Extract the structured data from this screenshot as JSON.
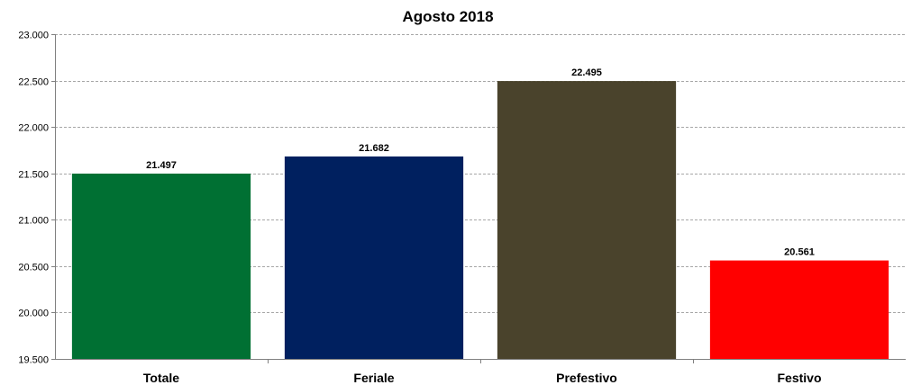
{
  "chart_data": {
    "type": "bar",
    "title": "Agosto 2018",
    "categories": [
      "Totale",
      "Feriale",
      "Prefestivo",
      "Festivo"
    ],
    "values": [
      21497,
      21682,
      22495,
      20561
    ],
    "value_labels": [
      "21.497",
      "21.682",
      "22.495",
      "20.561"
    ],
    "colors": [
      "#007033",
      "#00205f",
      "#4a432c",
      "#ff0000"
    ],
    "ylim": [
      19500,
      23000
    ],
    "yticks": [
      19500,
      20000,
      20500,
      21000,
      21500,
      22000,
      22500,
      23000
    ],
    "ytick_labels": [
      "19.500",
      "20.000",
      "20.500",
      "21.000",
      "21.500",
      "22.000",
      "22.500",
      "23.000"
    ],
    "grid": true,
    "legend": "none"
  }
}
